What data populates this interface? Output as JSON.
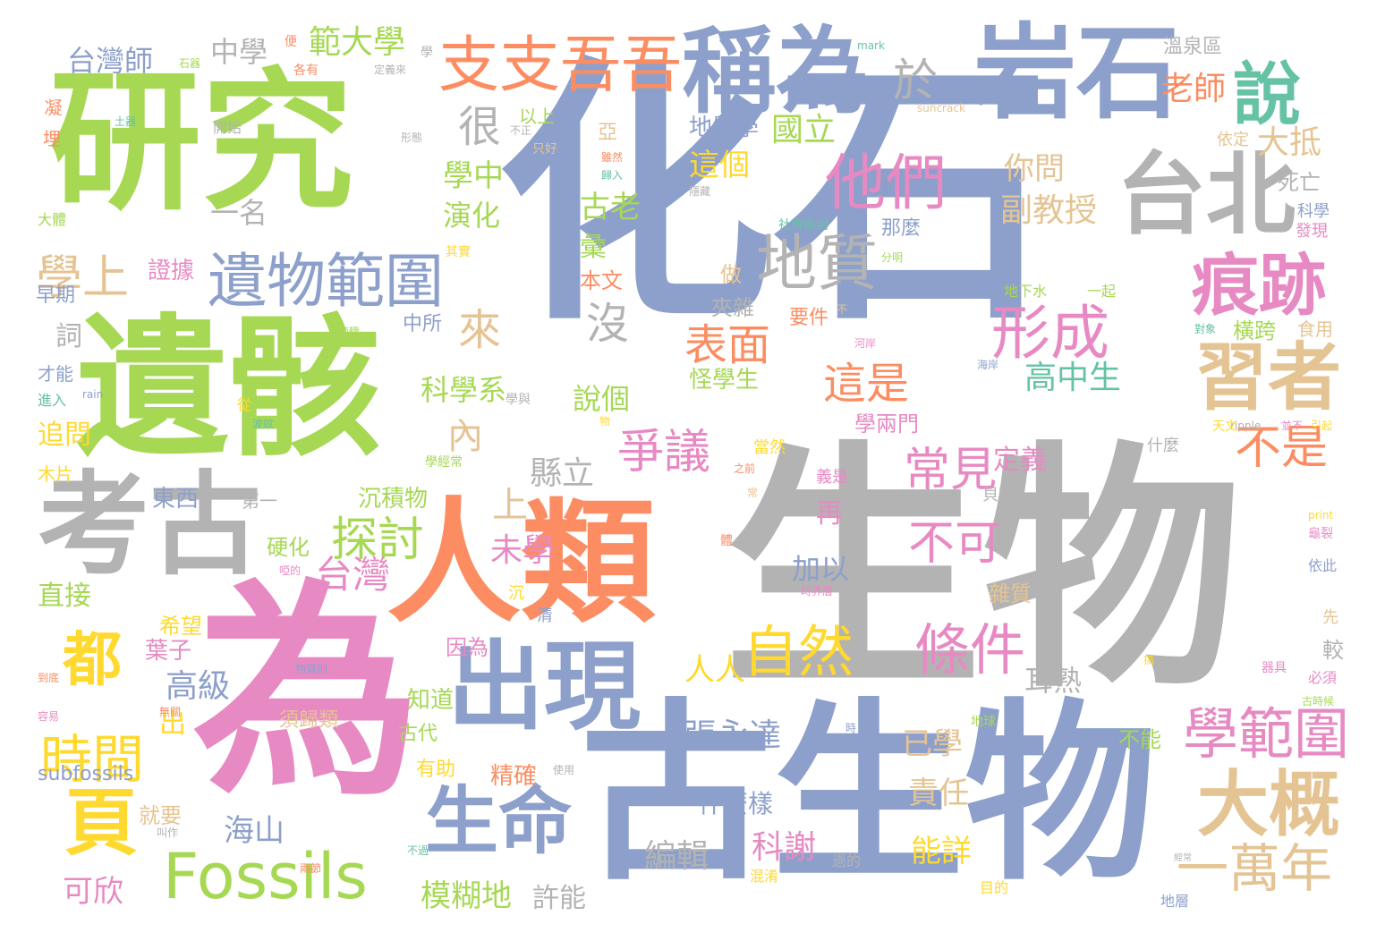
{
  "palette": {
    "gray": "#b3b3b3",
    "blue": "#8da0cb",
    "green": "#a6d854",
    "orange": "#fc8d62",
    "pink": "#e78ac3",
    "yellow": "#ffd92f",
    "tan": "#e5c494",
    "teal": "#66c2a5"
  },
  "words": {
    "w1": "化石",
    "w2": "生物",
    "w3": "古生物",
    "w4": "為",
    "w5": "研究",
    "w6": "遺骸",
    "w7": "人類",
    "w8": "考古",
    "w9": "岩石",
    "w10": "稱為",
    "w11": "出現",
    "w12": "台北",
    "w13": "支支吾吾",
    "w14": "遺物範圍",
    "w15": "地質",
    "w16": "習者",
    "w17": "痕跡",
    "w18": "生命",
    "w19": "Fossils",
    "w20": "大概",
    "w21": "學範圍",
    "w22": "形成",
    "w23": "他們",
    "w24": "說",
    "w25": "條件",
    "w26": "自然",
    "w27": "頁",
    "w28": "都",
    "w29": "時間",
    "w30": "一萬年",
    "w31": "爭議",
    "w32": "探討",
    "w33": "學上",
    "w34": "常見",
    "w35": "不可",
    "w36": "不是",
    "w37": "表面",
    "w38": "這是",
    "w39": "很",
    "w40": "來",
    "w41": "沒",
    "w42": "於",
    "w43": "內",
    "w44": "上",
    "w45": "台灣",
    "w46": "範大學",
    "w47": "中學",
    "w48": "台灣師",
    "w49": "科學系",
    "w50": "學中",
    "w51": "演化",
    "w52": "古老",
    "w53": "彙",
    "w54": "這個",
    "w55": "國立",
    "w56": "地質學",
    "w57": "老師",
    "w58": "大抵",
    "w59": "你問",
    "w60": "副教授",
    "w61": "高中生",
    "w62": "縣立",
    "w63": "未學",
    "w64": "張永達",
    "w65": "人人",
    "w66": "耳熟",
    "w67": "已學",
    "w68": "責任",
    "w69": "能詳",
    "w70": "高級",
    "w71": "海山",
    "w72": "可欣",
    "w73": "模糊地",
    "w74": "許能",
    "w75": "科謝",
    "w76": "編輯",
    "w77": "什麼樣",
    "w78": "定義",
    "w79": "加以",
    "w80": "再",
    "w81": "說個",
    "w82": "一名",
    "w83": "證據",
    "w84": "詞",
    "w85": "早期",
    "w86": "中所",
    "w87": "追問",
    "w88": "東西",
    "w89": "第一",
    "w90": "硬化",
    "w91": "沉積物",
    "w92": "直接",
    "w93": "葉子",
    "w94": "希望",
    "w95": "因為",
    "w96": "知道",
    "w97": "古代",
    "w98": "須歸類",
    "w99": "有助",
    "w100": "精確",
    "w101": "就要",
    "w102": "出",
    "w103": "subfossils",
    "w104": "不能",
    "w105": "雜質",
    "w106": "較",
    "w107": "夾雜",
    "w108": "做",
    "w109": "怪學生",
    "w110": "學兩門",
    "w111": "要件",
    "w112": "那麼",
    "w113": "一起",
    "w114": "地下水",
    "w115": "依定",
    "w116": "死亡",
    "w117": "科學",
    "w118": "發現",
    "w119": "食用",
    "w120": "橫跨",
    "w121": "溫泉區",
    "w122": "以上",
    "w123": "亞",
    "w124": "本文",
    "w125": "才能",
    "w126": "進入",
    "w127": "木片",
    "w128": "大體",
    "w129": "開始",
    "w130": "凝",
    "w131": "埋",
    "w132": "石器",
    "w133": "土器",
    "w134": "各有",
    "w135": "定義來",
    "w136": "mark",
    "w137": "suncrack",
    "w138": "ripple",
    "w139": "rain",
    "w140": "print",
    "w141": "龜裂",
    "w142": "依此",
    "w143": "先",
    "w144": "必須",
    "w145": "古時候",
    "w146": "天文",
    "w147": "並不",
    "w148": "引起",
    "w149": "什麼",
    "w150": "貝類",
    "w151": "地層",
    "w152": "地球",
    "w153": "目的",
    "w154": "不過",
    "w155": "經常",
    "w156": "時界層",
    "w157": "當然",
    "w158": "義是",
    "w159": "之前",
    "w160": "學經常",
    "w161": "物",
    "w162": "清",
    "w163": "沉",
    "w164": "到底",
    "w165": "無關",
    "w166": "容易",
    "w167": "叫作",
    "w168": "兩節",
    "w169": "使用",
    "w170": "下",
    "w171": "過的",
    "w172": "混淆",
    "w173": "時",
    "w174": "器具",
    "w175": "搞",
    "w176": "物質則",
    "w177": "是不是",
    "w178": "啞的",
    "w179": "學與",
    "w180": "從",
    "w181": "波紋",
    "w182": "範疇",
    "w183": "形態",
    "w184": "只好",
    "w185": "不正",
    "w186": "雖然",
    "w187": "歸入",
    "w188": "隱藏",
    "w189": "社會後則",
    "w190": "分明",
    "w191": "不",
    "w192": "河岸",
    "w193": "海岸",
    "w194": "對象",
    "w195": "其實",
    "w196": "便",
    "w197": "學",
    "w198": "常",
    "w199": "體"
  }
}
